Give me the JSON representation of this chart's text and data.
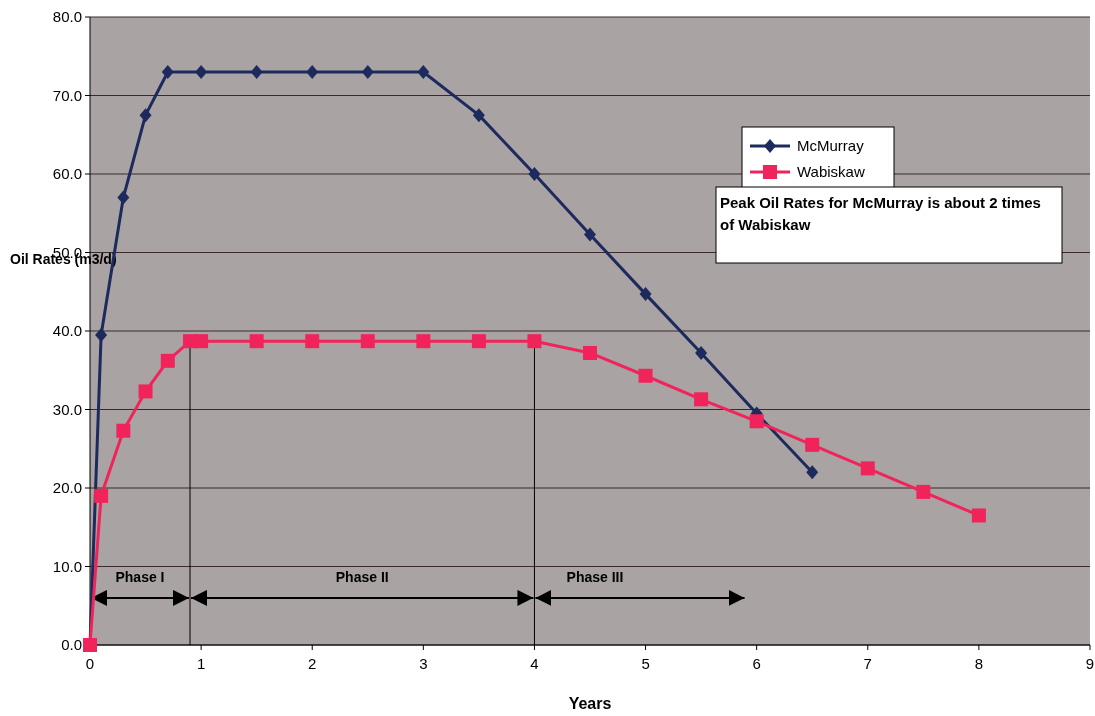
{
  "chart_data": {
    "type": "line",
    "xlabel": "Years",
    "ylabel": "Oil Rates (m3/d)",
    "xlim": [
      0,
      9
    ],
    "xticks": [
      0,
      1,
      2,
      3,
      4,
      5,
      6,
      7,
      8,
      9
    ],
    "ylim": [
      0,
      80
    ],
    "yticks": [
      {
        "value": 0,
        "label": "0.0"
      },
      {
        "value": 10,
        "label": "10.0"
      },
      {
        "value": 20,
        "label": "20.0"
      },
      {
        "value": 30,
        "label": "30.0"
      },
      {
        "value": 40,
        "label": "40.0"
      },
      {
        "value": 50,
        "label": "50.0"
      },
      {
        "value": 60,
        "label": "60.0"
      },
      {
        "value": 70,
        "label": "70.0"
      },
      {
        "value": 80,
        "label": "80.0"
      }
    ],
    "grid": "y",
    "legend": "top right",
    "series": [
      {
        "name": "McMurray",
        "color": "#1c2a5e",
        "marker": "diamond",
        "x": [
          0,
          0.1,
          0.3,
          0.5,
          0.7,
          1,
          1.5,
          2,
          2.5,
          3,
          3.5,
          4,
          4.5,
          5,
          5.5,
          6,
          6.5
        ],
        "values": [
          0,
          39.5,
          57,
          67.5,
          73,
          73,
          73,
          73,
          73,
          73,
          67.5,
          60,
          52.3,
          44.7,
          37.2,
          29.5,
          22
        ]
      },
      {
        "name": "Wabiskaw",
        "color": "#f0245a",
        "marker": "square",
        "x": [
          0,
          0.1,
          0.3,
          0.5,
          0.7,
          0.9,
          1,
          1.5,
          2,
          2.5,
          3,
          3.5,
          4,
          4.5,
          5,
          5.5,
          6,
          6.5,
          7,
          7.5,
          8
        ],
        "values": [
          0,
          19,
          27.3,
          32.3,
          36.2,
          38.7,
          38.7,
          38.7,
          38.7,
          38.7,
          38.7,
          38.7,
          38.7,
          37.2,
          34.3,
          31.3,
          28.5,
          25.5,
          22.5,
          19.5,
          16.5
        ]
      }
    ],
    "ref_lines": [
      {
        "axis": "x",
        "value": 0.9
      },
      {
        "axis": "x",
        "value": 4
      }
    ],
    "annotations": [
      "Phase I",
      "Phase II",
      "Phase III",
      "Peak Oil Rates for McMurray is about 2 times of Wabiskaw"
    ]
  }
}
